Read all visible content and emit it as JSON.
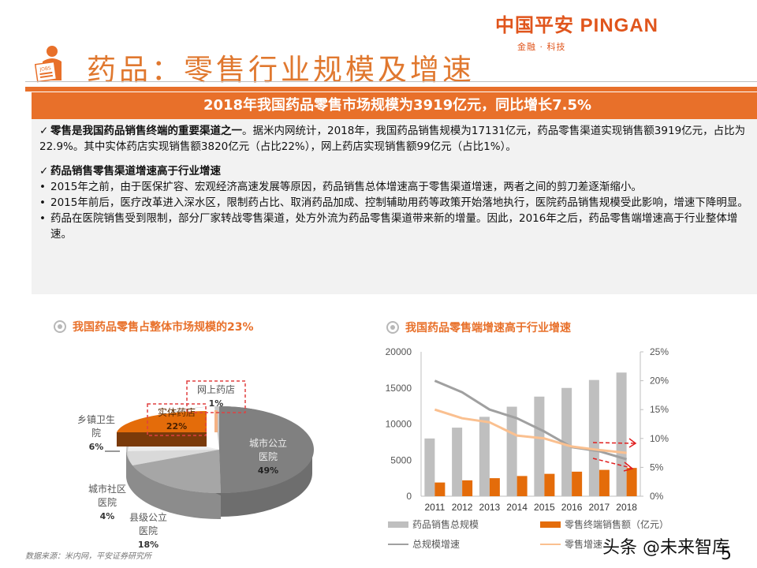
{
  "logo": {
    "main": "中国平安 PINGAN",
    "sub": "金融 · 科技"
  },
  "page_title": "药品：零售行业规模及增速",
  "title_icon_text": "JOBS",
  "banner": "2018年我国药品零售市场规模为3919亿元，同比增长7.5%",
  "panel": {
    "check_mark": "✓",
    "bullet_mark": "•",
    "para1_bold": "零售是我国药品销售终端的重要渠道之一",
    "para1_text": "。据米内网统计，2018年，我国药品销售规模为17131亿元，药品零售渠道实现销售额3919亿元，占比为22.9%。其中实体药店实现销售额3820亿元（占比22%），网上药店实现销售额99亿元（占比1%）。",
    "para2_bold": "药品销售零售渠道增速高于行业增速",
    "bullets": [
      "2015年之前，由于医保扩容、宏观经济高速发展等原因，药品销售总体增速高于零售渠道增速，两者之间的剪刀差逐渐缩小。",
      "2015年前后，医疗改革进入深水区，限制药占比、取消药品加成、控制辅助用药等政策开始落地执行，医院药品销售规模受此影响，增速下降明显。",
      "药品在医院销售受到限制，部分厂家转战零售渠道，处方外流为药品零售渠道带来新的增量。因此，2016年之后，药品零售端增速高于行业整体增速。"
    ]
  },
  "left_section": {
    "title": "我国药品零售占整体市场规模的23%"
  },
  "right_section": {
    "title": "我国药品零售端增速高于行业增速"
  },
  "pie_labels": {
    "online": {
      "name": "网上药店",
      "pct": "1%"
    },
    "physical": {
      "name": "实体药店",
      "pct": "22%"
    },
    "township": {
      "name1": "乡镇卫生",
      "name2": "院",
      "pct": "6%"
    },
    "urban_public": {
      "name1": "城市公立",
      "name2": "医院",
      "pct": "49%"
    },
    "community": {
      "name1": "城市社区",
      "name2": "医院",
      "pct": "4%"
    },
    "county": {
      "name1": "县级公立",
      "name2": "医院",
      "pct": "18%"
    }
  },
  "source": "数据来源：米内网，平安证券研究所",
  "legend": {
    "total_scale": "药品销售总规模",
    "retail_sales": "零售终端销售额（亿元）",
    "total_growth": "总规模增速",
    "retail_growth": "零售增速"
  },
  "watermark": "头条 @未来智库",
  "page_number": "5",
  "colors": {
    "accent": "#e8702a",
    "bar_gray": "#bfbfbf",
    "bar_orange": "#e46c0a",
    "line_gray": "#a0a0a0",
    "line_peach": "#fac090",
    "arrow_red": "#e02020"
  },
  "chart_data": [
    {
      "type": "pie",
      "title": "我国药品零售占整体市场规模的23%",
      "categories": [
        "城市公立医院",
        "县级公立医院",
        "城市社区医院",
        "乡镇卫生院",
        "实体药店",
        "网上药店"
      ],
      "values": [
        49,
        18,
        4,
        6,
        22,
        1
      ],
      "unit": "%"
    },
    {
      "type": "bar",
      "title": "我国药品零售端增速高于行业增速",
      "categories": [
        "2011",
        "2012",
        "2013",
        "2014",
        "2015",
        "2016",
        "2017",
        "2018"
      ],
      "ylabel_left": "亿元",
      "ylim_left": [
        0,
        20000
      ],
      "yticks_left": [
        0,
        5000,
        10000,
        15000,
        20000
      ],
      "ylabel_right": "%",
      "ylim_right": [
        0,
        25
      ],
      "yticks_right": [
        "0%",
        "5%",
        "10%",
        "15%",
        "20%",
        "25%"
      ],
      "series": [
        {
          "name": "药品销售总规模",
          "type": "bar",
          "axis": "left",
          "values": [
            8000,
            9500,
            11000,
            12400,
            13800,
            15000,
            16100,
            17131
          ]
        },
        {
          "name": "零售终端销售额（亿元）",
          "type": "bar",
          "axis": "left",
          "values": [
            1900,
            2200,
            2500,
            2800,
            3100,
            3400,
            3650,
            3919
          ]
        },
        {
          "name": "总规模增速",
          "type": "line",
          "axis": "right",
          "values": [
            20.0,
            18.0,
            15.0,
            13.5,
            11.2,
            8.5,
            7.8,
            6.4
          ]
        },
        {
          "name": "零售增速",
          "type": "line",
          "axis": "right",
          "values": [
            15.0,
            13.5,
            12.8,
            10.5,
            10.0,
            8.6,
            8.0,
            7.5
          ]
        }
      ],
      "annotations": [
        "two red dashed arrows pointing right near 2017-2018"
      ]
    }
  ]
}
